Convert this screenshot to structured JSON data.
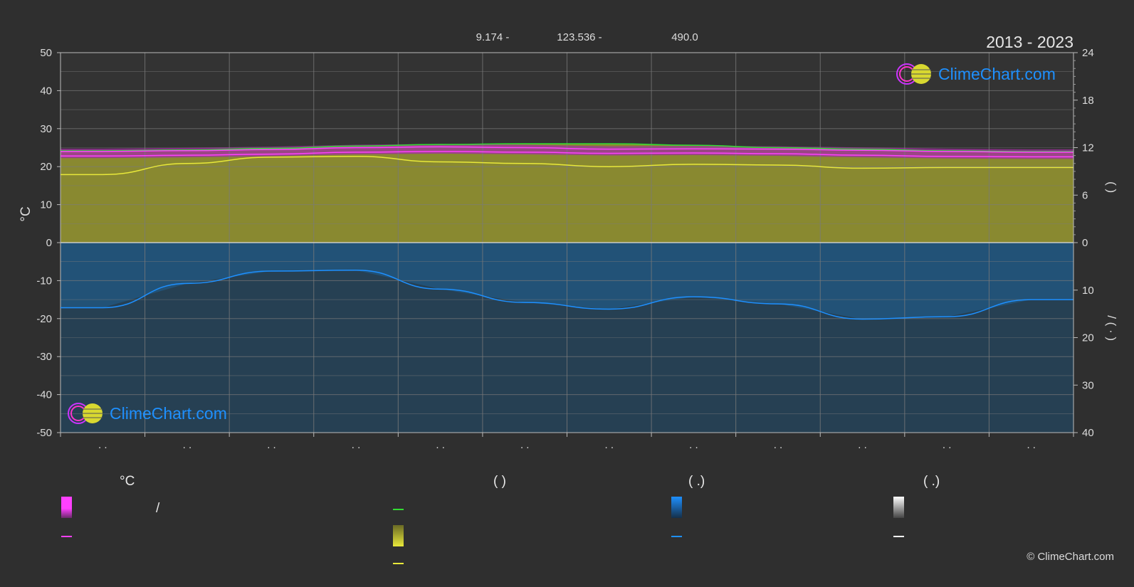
{
  "header": {
    "stats": [
      "9.174 -",
      "123.536 -",
      "490.0"
    ],
    "period": "2013 - 2023"
  },
  "logo": {
    "text": "ClimeChart.com"
  },
  "copyright": "© ClimeChart.com",
  "legend": {
    "col1_head": "°C",
    "col1_sep": "/",
    "col3_head": "(          )",
    "col4_head": "(   .)",
    "col5_head": "(   .)"
  },
  "colors": {
    "background": "#2f2f2f",
    "plot_bg": "#333333",
    "grid": "#7a7a7a",
    "magenta": "#ff40ff",
    "green": "#33dd33",
    "yellow": "#e8e83a",
    "sun_fill": "#8e8e30",
    "rain_fill": "#1f5f8f",
    "blue": "#1e90ff",
    "white": "#ffffff"
  },
  "chart_data": {
    "type": "area",
    "months": 12,
    "x_tick_labels": [
      ". .",
      ". .",
      ". .",
      ". .",
      ". .",
      ". .",
      ". .",
      ". .",
      ". .",
      ". .",
      ". .",
      ". ."
    ],
    "left_axis": {
      "label": "°C",
      "range": [
        -50,
        50
      ],
      "ticks": [
        50,
        40,
        30,
        20,
        10,
        0,
        -10,
        -20,
        -30,
        -40,
        -50
      ]
    },
    "right_axis_top": {
      "range": [
        0,
        24
      ],
      "ticks": [
        24,
        18,
        12,
        6,
        0
      ],
      "label": "(   )"
    },
    "right_axis_bottom": {
      "range": [
        0,
        40
      ],
      "ticks": [
        10,
        20,
        30,
        40
      ],
      "label": "/ (  ·  )"
    },
    "series": [
      {
        "key": "daylight",
        "axis": "right_top",
        "color": "#33dd33",
        "values": [
          11.6,
          11.7,
          11.9,
          12.2,
          12.4,
          12.5,
          12.5,
          12.3,
          12.0,
          11.8,
          11.6,
          11.5
        ]
      },
      {
        "key": "max_temp",
        "axis": "left",
        "color": "#ff40ff",
        "values": [
          24.0,
          24.2,
          24.5,
          25.0,
          25.2,
          25.0,
          24.6,
          24.7,
          24.6,
          24.3,
          24.0,
          23.8
        ]
      },
      {
        "key": "min_temp",
        "axis": "left",
        "color": "#ff40ff",
        "values": [
          22.8,
          23.0,
          23.3,
          23.8,
          24.0,
          23.8,
          23.5,
          23.6,
          23.4,
          23.0,
          22.7,
          22.6
        ]
      },
      {
        "key": "sunshine",
        "axis": "right_top",
        "color": "#e8e83a",
        "values": [
          8.6,
          10.0,
          10.8,
          10.9,
          10.2,
          10.0,
          9.6,
          9.9,
          9.8,
          9.4,
          9.5,
          9.5
        ]
      },
      {
        "key": "precipitation",
        "axis": "right_bottom",
        "color": "#1e90ff",
        "values": [
          13.7,
          8.6,
          6.0,
          5.8,
          9.8,
          12.6,
          14.0,
          11.4,
          12.9,
          16.1,
          15.6,
          12.0
        ]
      }
    ]
  }
}
